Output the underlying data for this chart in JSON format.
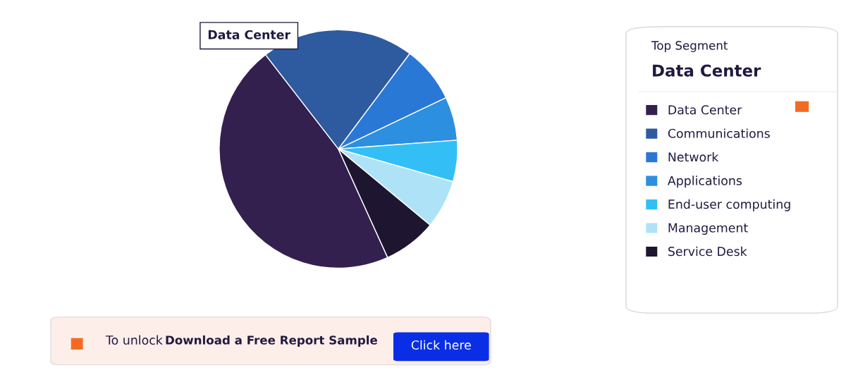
{
  "chart_data": {
    "type": "pie",
    "categories": [
      "Data Center",
      "Communications",
      "Network",
      "Applications",
      "End-user computing",
      "Management",
      "Service Desk"
    ],
    "values": [
      46.3,
      20.7,
      7.7,
      5.9,
      5.6,
      6.6,
      7.2
    ],
    "colors": [
      "#33204f",
      "#2e5aa0",
      "#2a78d6",
      "#2c8fe0",
      "#33bff5",
      "#aee3f7",
      "#1e1530"
    ],
    "legend": "right",
    "legend_title": "Top Segment",
    "annotations": [
      "Data Center",
      "Data Center",
      "To unlock",
      "Download a Free Report Sample",
      "Click here"
    ]
  }
}
